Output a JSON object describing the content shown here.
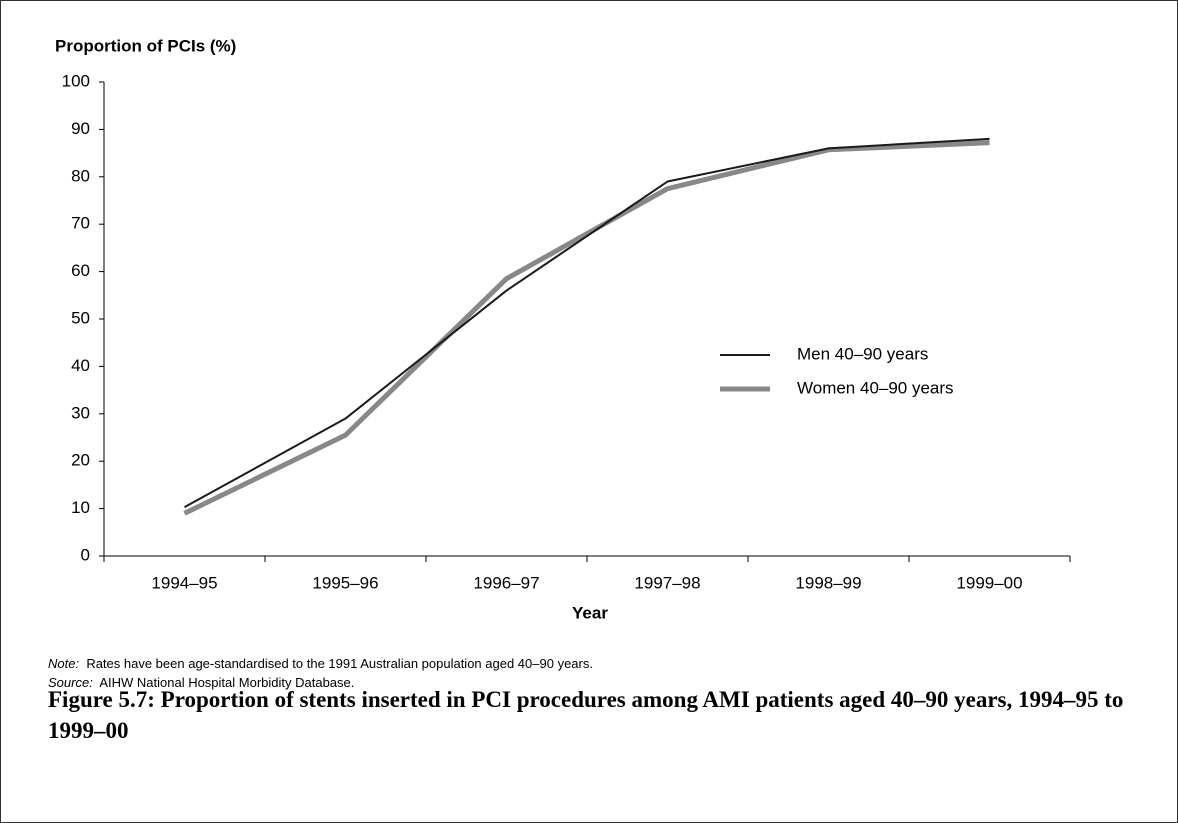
{
  "chart_data": {
    "type": "line",
    "y_label": "Proportion of PCIs (%)",
    "x_label": "Year",
    "categories": [
      "1994–95",
      "1995–96",
      "1996–97",
      "1997–98",
      "1998–99",
      "1999–00"
    ],
    "series": [
      {
        "name": "Men 40–90 years",
        "color": "#1a1a1a",
        "values": [
          10.3,
          29,
          56,
          79,
          86,
          88
        ]
      },
      {
        "name": "Women 40–90 years",
        "color": "#888888",
        "values": [
          9,
          25.5,
          58.5,
          77.5,
          85.7,
          87.2
        ]
      }
    ],
    "ylim": [
      0,
      100
    ],
    "yticks": [
      0,
      10,
      20,
      30,
      40,
      50,
      60,
      70,
      80,
      90,
      100
    ],
    "grid": false
  },
  "note": {
    "label": "Note:",
    "text": "Rates have been age-standardised to the 1991 Australian population aged 40–90 years."
  },
  "source": {
    "label": "Source:",
    "text": "AIHW National Hospital Morbidity Database."
  },
  "caption": "Figure 5.7: Proportion of stents inserted in PCI procedures among AMI patients aged 40–90 years, 1994–95 to 1999–00"
}
